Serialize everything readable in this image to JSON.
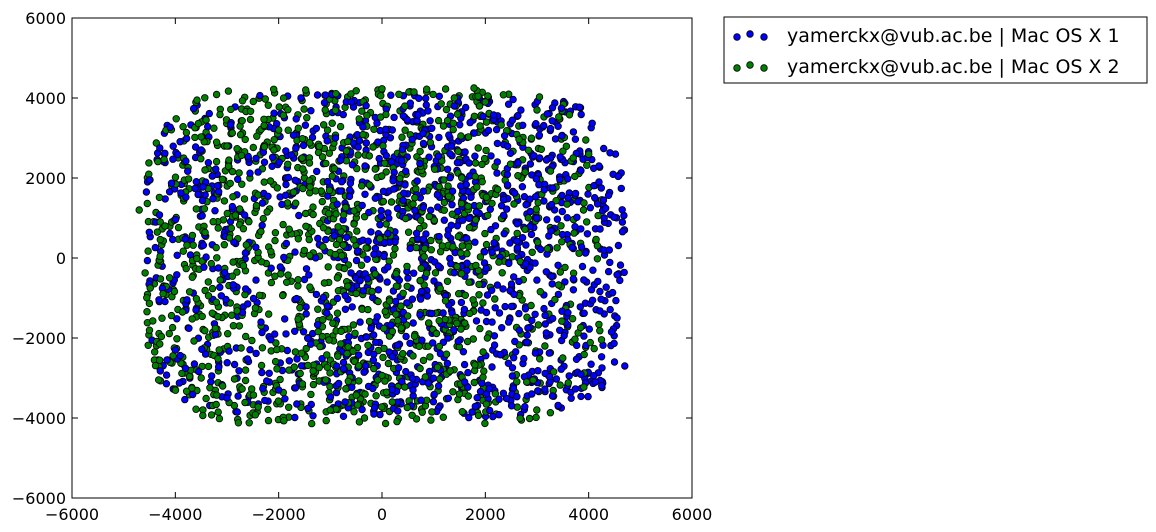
{
  "chart_data": {
    "type": "scatter",
    "title": "",
    "xlabel": "",
    "ylabel": "",
    "xlim": [
      -6000,
      6000
    ],
    "ylim": [
      -6000,
      6000
    ],
    "xticks": [
      "−6000",
      "−4000",
      "−2000",
      "0",
      "2000",
      "4000",
      "6000"
    ],
    "yticks": [
      "6000",
      "4000",
      "2000",
      "0",
      "−2000",
      "−4000",
      "−6000"
    ],
    "grid": false,
    "legend_position": "outside-top-right",
    "series": [
      {
        "name": "yamerckx@vub.ac.be | Mac OS X 1",
        "color": "#0000ff",
        "x_range": [
          -4600,
          4700
        ],
        "y_range": [
          -4000,
          4100
        ],
        "points": [
          [
            -4100,
            3270
          ],
          [
            3820,
            3770
          ],
          [
            4200,
            1900
          ],
          [
            4300,
            1000
          ],
          [
            4700,
            -2700
          ],
          [
            4550,
            -1500
          ],
          [
            4130,
            -3100
          ],
          [
            3300,
            -3450
          ],
          [
            -2800,
            -3850
          ],
          [
            -1650,
            -3650
          ],
          [
            -4500,
            1950
          ],
          [
            -4560,
            1650
          ],
          [
            -4300,
            2750
          ],
          [
            4550,
            -420
          ],
          [
            4400,
            200
          ],
          [
            -900,
            3000
          ],
          [
            200,
            3200
          ],
          [
            1400,
            3800
          ],
          [
            3200,
            3600
          ],
          [
            2900,
            -3400
          ],
          [
            -3000,
            -3500
          ],
          [
            -2000,
            -3300
          ],
          [
            600,
            -3300
          ],
          [
            1600,
            -3100
          ],
          [
            -4000,
            -2300
          ],
          [
            4500,
            -2600
          ],
          [
            4200,
            2300
          ],
          [
            -3500,
            2700
          ],
          [
            -3600,
            -1300
          ],
          [
            3600,
            1500
          ]
        ]
      },
      {
        "name": "yamerckx@vub.ac.be | Mac OS X 2",
        "color": "#008000",
        "x_range": [
          -4600,
          4300
        ],
        "y_range": [
          -4150,
          4250
        ],
        "points": [
          [
            -2700,
            3930
          ],
          [
            -2200,
            3820
          ],
          [
            -500,
            4180
          ],
          [
            0,
            4230
          ],
          [
            520,
            4150
          ],
          [
            620,
            4150
          ],
          [
            1780,
            4250
          ],
          [
            2350,
            4080
          ],
          [
            2050,
            4050
          ],
          [
            -4700,
            1200
          ],
          [
            -4300,
            -2150
          ],
          [
            -2780,
            -4120
          ],
          [
            -2450,
            -3920
          ],
          [
            -3600,
            -3780
          ],
          [
            -4020,
            -2250
          ],
          [
            -1100,
            3700
          ],
          [
            1400,
            4000
          ],
          [
            3000,
            3700
          ],
          [
            2000,
            3900
          ],
          [
            -3000,
            2800
          ],
          [
            -2000,
            3200
          ],
          [
            3700,
            2500
          ],
          [
            3900,
            1200
          ],
          [
            3500,
            -2500
          ],
          [
            -3500,
            -3000
          ],
          [
            -1000,
            -3800
          ],
          [
            200,
            -3600
          ],
          [
            1500,
            -3400
          ],
          [
            2800,
            -3100
          ],
          [
            -4200,
            800
          ]
        ]
      }
    ]
  }
}
